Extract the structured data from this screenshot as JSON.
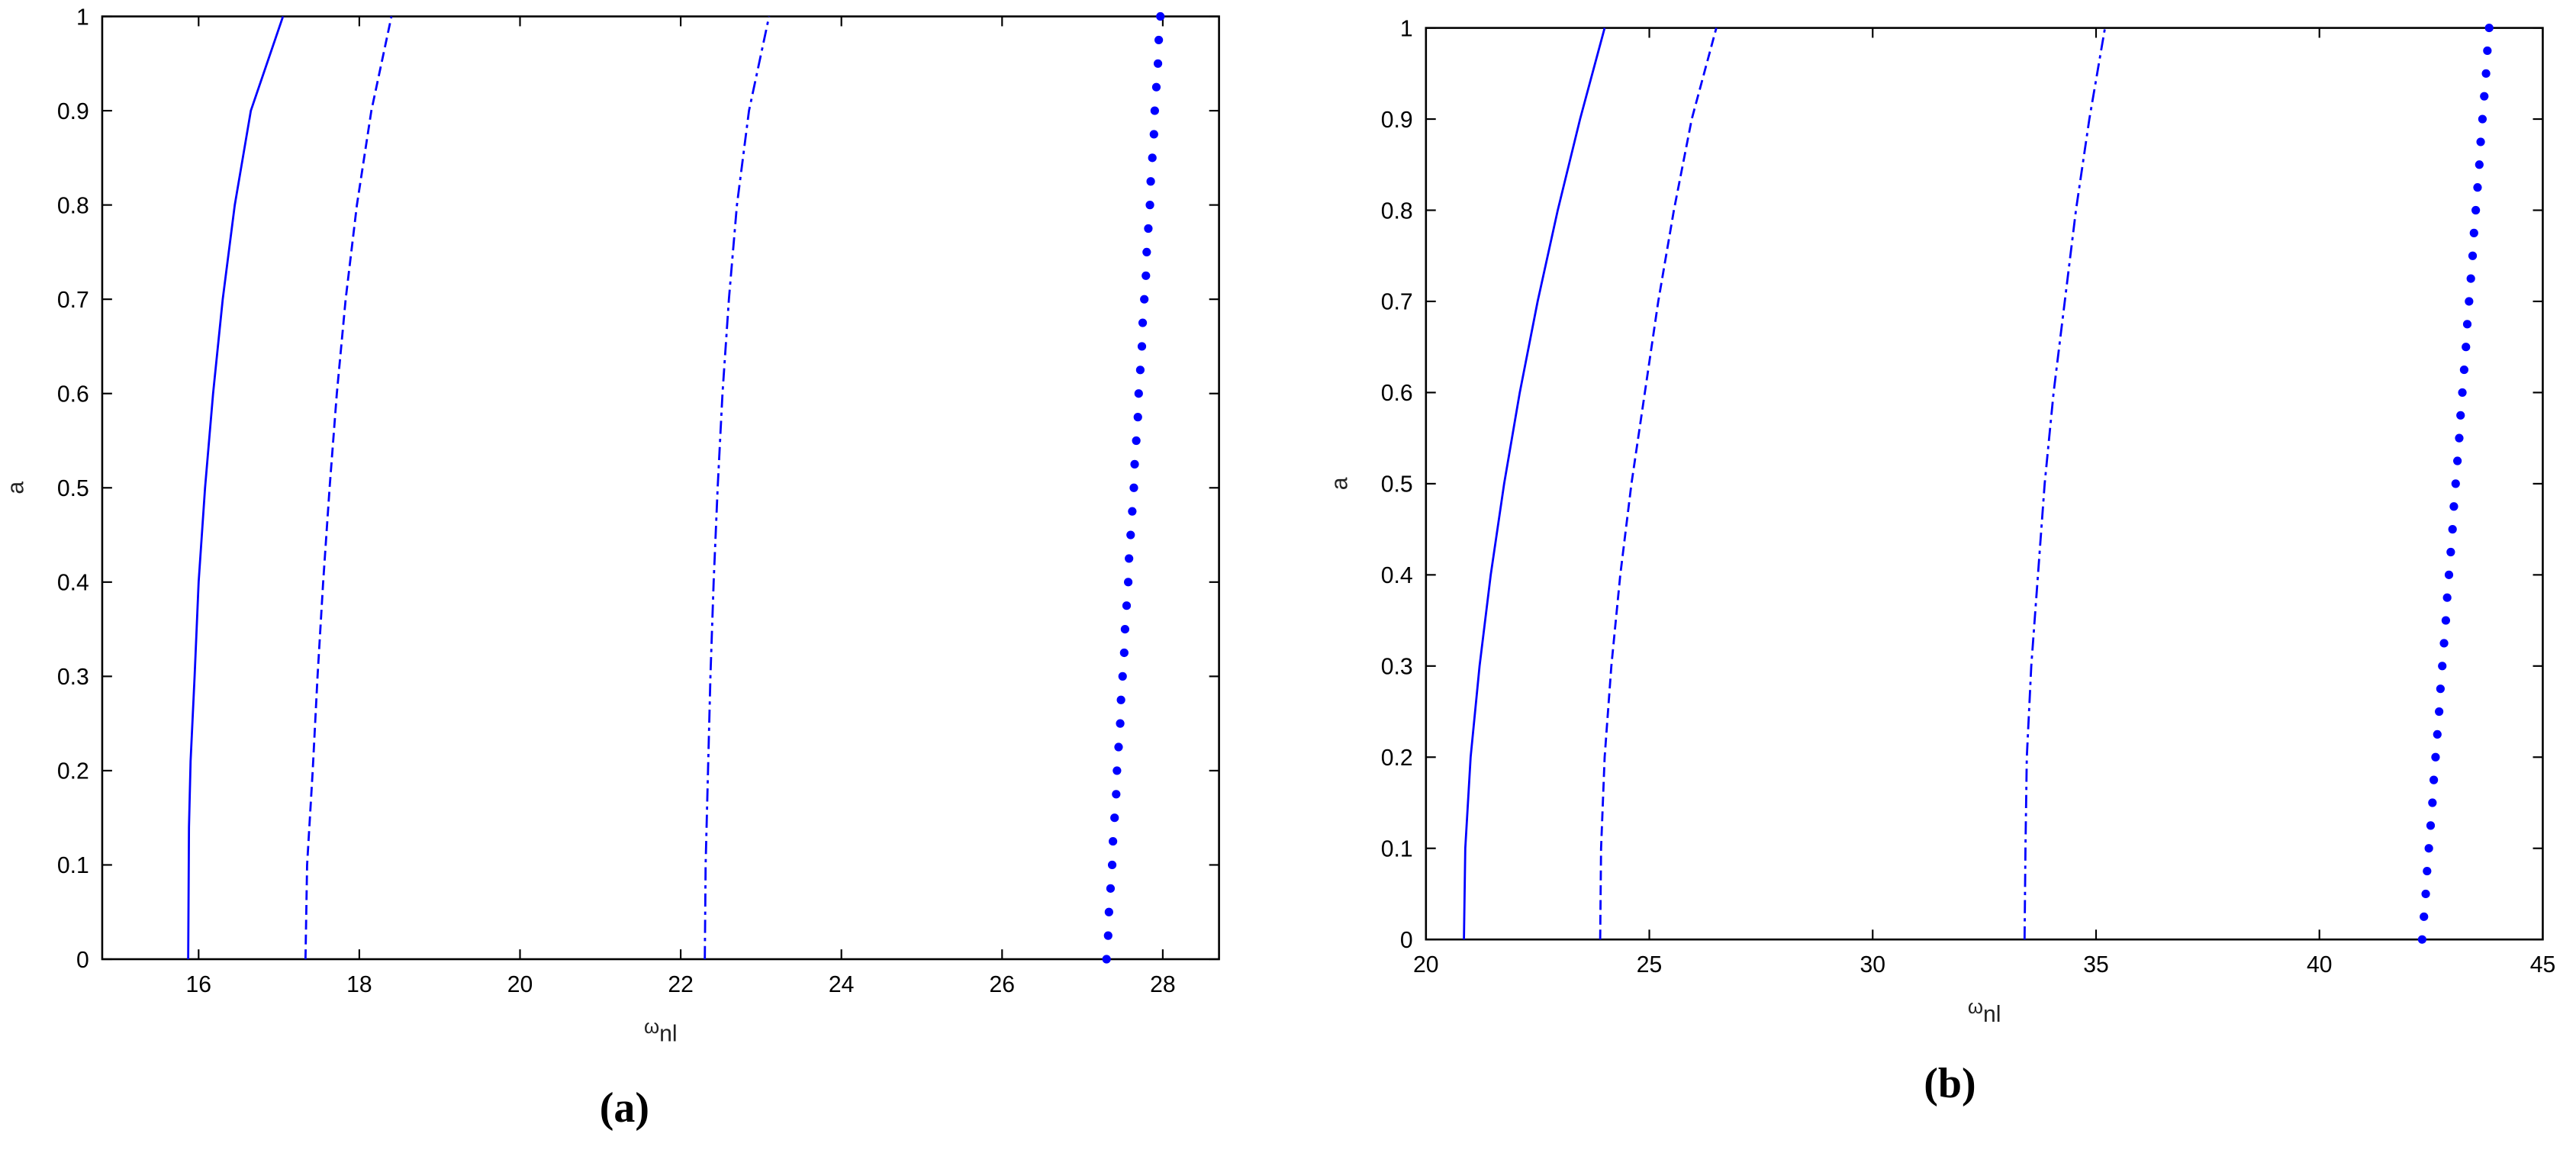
{
  "chart_data": [
    {
      "type": "line",
      "caption": "(a)",
      "ylabel": "a",
      "xlabel": "ω",
      "xlabel_subscript": "nl",
      "xlim": [
        14.8,
        28.7
      ],
      "xticks": [
        16,
        18,
        20,
        22,
        24,
        26,
        28
      ],
      "ylim": [
        0,
        1
      ],
      "yticks": [
        0,
        0.1,
        0.2,
        0.3,
        0.4,
        0.5,
        0.6,
        0.7,
        0.8,
        0.9,
        1
      ],
      "series": [
        {
          "color": "#0000ff",
          "dash": "solid",
          "x": [
            15.87,
            15.88,
            15.9,
            15.95,
            16.0,
            16.08,
            16.18,
            16.3,
            16.45,
            16.65,
            17.05
          ],
          "values": [
            0,
            0.14,
            0.21,
            0.3,
            0.4,
            0.5,
            0.6,
            0.7,
            0.8,
            0.9,
            1
          ]
        },
        {
          "color": "#0000ff",
          "dash": "dashed",
          "x": [
            17.33,
            17.35,
            17.42,
            17.48,
            17.55,
            17.63,
            17.72,
            17.83,
            17.97,
            18.15,
            18.4
          ],
          "values": [
            0,
            0.1,
            0.2,
            0.3,
            0.4,
            0.5,
            0.6,
            0.7,
            0.8,
            0.9,
            1
          ]
        },
        {
          "color": "#0000ff",
          "dash": "dashdot",
          "x": [
            22.3,
            22.31,
            22.34,
            22.37,
            22.41,
            22.46,
            22.52,
            22.6,
            22.7,
            22.85,
            23.1
          ],
          "values": [
            0,
            0.1,
            0.2,
            0.3,
            0.4,
            0.5,
            0.6,
            0.7,
            0.8,
            0.9,
            1
          ]
        },
        {
          "color": "#0000ff",
          "dash": "dotted",
          "x": [
            27.3,
            27.32,
            27.33,
            27.35,
            27.37,
            27.38,
            27.4,
            27.42,
            27.43,
            27.45,
            27.47,
            27.48,
            27.5,
            27.52,
            27.53,
            27.55,
            27.57,
            27.58,
            27.6,
            27.62,
            27.64,
            27.65,
            27.67,
            27.69,
            27.7,
            27.72,
            27.74,
            27.75,
            27.77,
            27.79,
            27.8,
            27.82,
            27.84,
            27.85,
            27.87,
            27.89,
            27.9,
            27.92,
            27.94,
            27.95,
            27.97
          ],
          "values": [
            0,
            0.025,
            0.05,
            0.075,
            0.1,
            0.125,
            0.15,
            0.175,
            0.2,
            0.225,
            0.25,
            0.275,
            0.3,
            0.325,
            0.35,
            0.375,
            0.4,
            0.425,
            0.45,
            0.475,
            0.5,
            0.525,
            0.55,
            0.575,
            0.6,
            0.625,
            0.65,
            0.675,
            0.7,
            0.725,
            0.75,
            0.775,
            0.8,
            0.825,
            0.85,
            0.875,
            0.9,
            0.925,
            0.95,
            0.975,
            1
          ]
        }
      ]
    },
    {
      "type": "line",
      "caption": "(b)",
      "ylabel": "a",
      "xlabel": "ω",
      "xlabel_subscript": "nl",
      "xlim": [
        20,
        45
      ],
      "xticks": [
        20,
        25,
        30,
        35,
        40,
        45
      ],
      "ylim": [
        0,
        1
      ],
      "yticks": [
        0,
        0.1,
        0.2,
        0.3,
        0.4,
        0.5,
        0.6,
        0.7,
        0.8,
        0.9,
        1
      ],
      "series": [
        {
          "color": "#0000ff",
          "dash": "solid",
          "x": [
            20.85,
            20.88,
            21.0,
            21.2,
            21.45,
            21.75,
            22.1,
            22.5,
            22.95,
            23.45,
            24.0
          ],
          "values": [
            0,
            0.1,
            0.2,
            0.3,
            0.4,
            0.5,
            0.6,
            0.7,
            0.8,
            0.9,
            1
          ]
        },
        {
          "color": "#0000ff",
          "dash": "dashed",
          "x": [
            23.9,
            23.92,
            24.0,
            24.15,
            24.35,
            24.6,
            24.9,
            25.2,
            25.55,
            25.95,
            26.5
          ],
          "values": [
            0,
            0.1,
            0.2,
            0.3,
            0.4,
            0.5,
            0.6,
            0.7,
            0.8,
            0.9,
            1
          ]
        },
        {
          "color": "#0000ff",
          "dash": "dashdot",
          "x": [
            33.4,
            33.42,
            33.45,
            33.55,
            33.7,
            33.85,
            34.05,
            34.3,
            34.55,
            34.85,
            35.2
          ],
          "values": [
            0,
            0.1,
            0.2,
            0.3,
            0.4,
            0.5,
            0.6,
            0.7,
            0.8,
            0.9,
            1
          ]
        },
        {
          "color": "#0000ff",
          "dash": "dotted",
          "x": [
            42.3,
            42.34,
            42.38,
            42.41,
            42.45,
            42.49,
            42.53,
            42.56,
            42.6,
            42.64,
            42.68,
            42.71,
            42.75,
            42.79,
            42.83,
            42.86,
            42.9,
            42.94,
            42.98,
            43.01,
            43.05,
            43.09,
            43.13,
            43.16,
            43.2,
            43.24,
            43.28,
            43.31,
            43.35,
            43.39,
            43.43,
            43.46,
            43.5,
            43.54,
            43.58,
            43.61,
            43.65,
            43.69,
            43.73,
            43.76,
            43.8
          ],
          "values": [
            0,
            0.025,
            0.05,
            0.075,
            0.1,
            0.125,
            0.15,
            0.175,
            0.2,
            0.225,
            0.25,
            0.275,
            0.3,
            0.325,
            0.35,
            0.375,
            0.4,
            0.425,
            0.45,
            0.475,
            0.5,
            0.525,
            0.55,
            0.575,
            0.6,
            0.625,
            0.65,
            0.675,
            0.7,
            0.725,
            0.75,
            0.775,
            0.8,
            0.825,
            0.85,
            0.875,
            0.9,
            0.925,
            0.95,
            0.975,
            1
          ]
        }
      ]
    }
  ]
}
